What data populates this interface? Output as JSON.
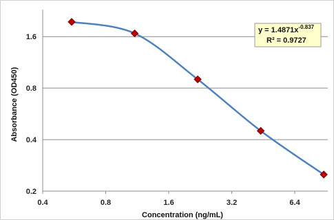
{
  "chart_data": {
    "type": "scatter",
    "xscale": "log",
    "yscale": "log",
    "xlabel": "Concentration (ng/mL)",
    "ylabel": "Absorbance (OD450)",
    "x_ticks": [
      "0.4",
      "0.8",
      "1.6",
      "3.2",
      "6.4"
    ],
    "x_tick_values": [
      0.4,
      0.8,
      1.6,
      3.2,
      6.4
    ],
    "y_ticks": [
      "0.2",
      "0.4",
      "0.8",
      "1.6"
    ],
    "y_tick_values": [
      0.2,
      0.4,
      0.8,
      1.6
    ],
    "xlim": [
      0.4,
      9.2
    ],
    "ylim": [
      0.2,
      2.3
    ],
    "grid": "horizontal",
    "series": [
      {
        "x": [
          0.55,
          1.1,
          2.2,
          4.4,
          8.8
        ],
        "y": [
          1.95,
          1.67,
          0.9,
          0.45,
          0.25
        ],
        "marker": "diamond",
        "marker_color": "#c00000",
        "line_color": "#4f81bd"
      }
    ],
    "annotation": {
      "line1_prefix": "y = 1.4871x",
      "line1_exponent": "-0.837",
      "line2": "R² = 0.9727",
      "background": "#ffffcc",
      "placement": "top-right"
    }
  }
}
